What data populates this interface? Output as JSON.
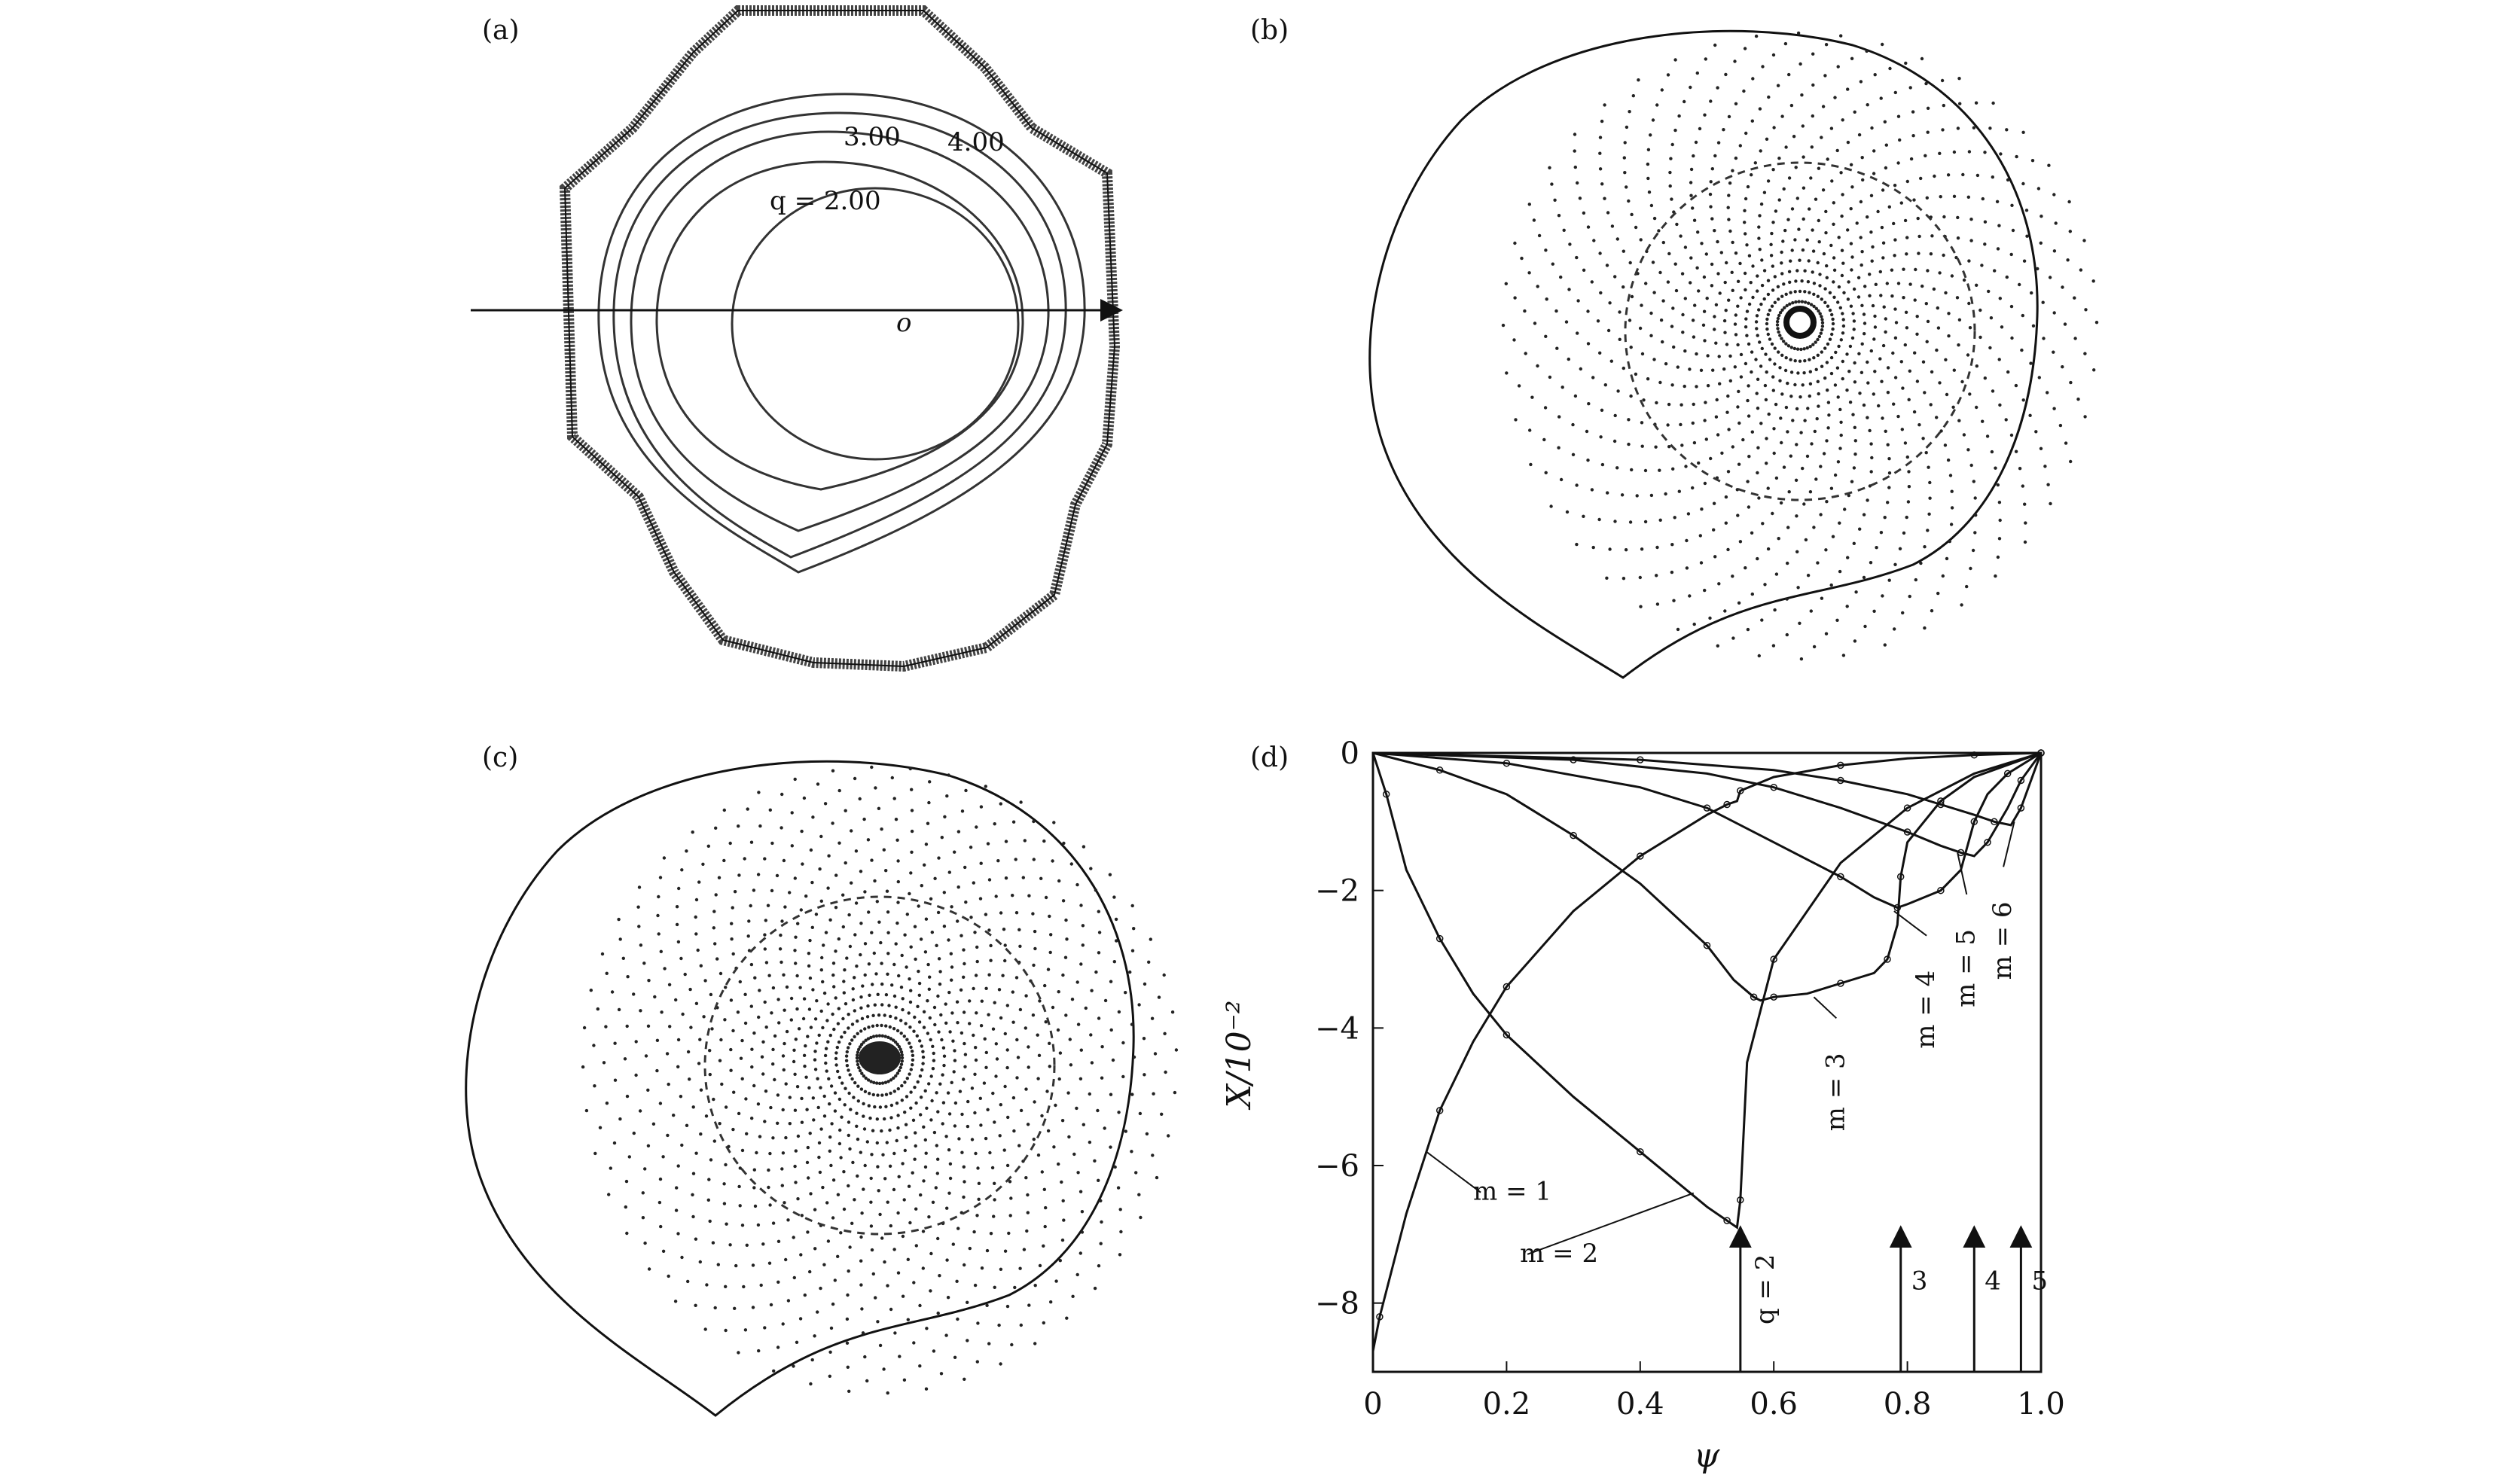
{
  "panels": {
    "a": {
      "label": "(a)",
      "contour_labels": [
        "q = 2.00",
        "3.00",
        "4.00"
      ],
      "center_label": "o"
    },
    "b": {
      "label": "(b)"
    },
    "c": {
      "label": "(c)"
    },
    "d": {
      "label": "(d)"
    }
  },
  "chart_data": {
    "type": "line",
    "panel": "(d)",
    "xlabel": "ψ",
    "ylabel": "X/10⁻²",
    "xlim": [
      0,
      1.0
    ],
    "ylim": [
      -9,
      0
    ],
    "x_ticks": [
      "0",
      "0.2",
      "0.4",
      "0.6",
      "0.8",
      "1.0"
    ],
    "y_ticks": [
      "0",
      "−2",
      "−4",
      "−6",
      "−8"
    ],
    "grid": false,
    "series": [
      {
        "name": "m = 1",
        "x": [
          0,
          0.01,
          0.05,
          0.1,
          0.15,
          0.2,
          0.3,
          0.4,
          0.5,
          0.53,
          0.545,
          0.55,
          0.6,
          0.7,
          0.8,
          0.9,
          1.0
        ],
        "values": [
          -8.7,
          -8.2,
          -6.7,
          -5.2,
          -4.2,
          -3.4,
          -2.3,
          -1.5,
          -0.9,
          -0.75,
          -0.7,
          -0.55,
          -0.35,
          -0.18,
          -0.08,
          -0.03,
          0
        ]
      },
      {
        "name": "m = 2",
        "x": [
          0,
          0.02,
          0.05,
          0.1,
          0.15,
          0.2,
          0.3,
          0.4,
          0.5,
          0.53,
          0.545,
          0.55,
          0.56,
          0.6,
          0.7,
          0.8,
          0.9,
          1.0
        ],
        "values": [
          0,
          -0.6,
          -1.7,
          -2.7,
          -3.5,
          -4.1,
          -5.0,
          -5.8,
          -6.6,
          -6.8,
          -6.9,
          -6.5,
          -4.5,
          -3.0,
          -1.6,
          -0.8,
          -0.3,
          0
        ]
      },
      {
        "name": "m = 3",
        "x": [
          0,
          0.1,
          0.2,
          0.3,
          0.4,
          0.5,
          0.54,
          0.57,
          0.58,
          0.6,
          0.65,
          0.7,
          0.75,
          0.77,
          0.785,
          0.79,
          0.8,
          0.85,
          0.9,
          1.0
        ],
        "values": [
          0,
          -0.25,
          -0.6,
          -1.2,
          -1.9,
          -2.8,
          -3.3,
          -3.55,
          -3.6,
          -3.55,
          -3.5,
          -3.35,
          -3.2,
          -3.0,
          -2.5,
          -1.8,
          -1.3,
          -0.7,
          -0.35,
          0
        ]
      },
      {
        "name": "m = 4",
        "x": [
          0,
          0.2,
          0.4,
          0.5,
          0.6,
          0.7,
          0.75,
          0.785,
          0.8,
          0.85,
          0.88,
          0.9,
          0.92,
          0.95,
          1.0
        ],
        "values": [
          0,
          -0.15,
          -0.5,
          -0.8,
          -1.3,
          -1.8,
          -2.1,
          -2.25,
          -2.2,
          -2.0,
          -1.7,
          -1.0,
          -0.6,
          -0.3,
          0
        ]
      },
      {
        "name": "m = 5",
        "x": [
          0,
          0.3,
          0.5,
          0.6,
          0.7,
          0.8,
          0.85,
          0.88,
          0.9,
          0.92,
          0.95,
          0.97,
          1.0
        ],
        "values": [
          0,
          -0.1,
          -0.3,
          -0.5,
          -0.8,
          -1.15,
          -1.35,
          -1.45,
          -1.5,
          -1.3,
          -0.8,
          -0.4,
          0
        ]
      },
      {
        "name": "m = 6",
        "x": [
          0,
          0.4,
          0.6,
          0.7,
          0.8,
          0.85,
          0.9,
          0.93,
          0.955,
          0.97,
          0.985,
          1.0
        ],
        "values": [
          0,
          -0.1,
          -0.25,
          -0.4,
          -0.6,
          -0.75,
          -0.9,
          -1.0,
          -1.05,
          -0.8,
          -0.4,
          0
        ]
      }
    ],
    "resonance_markers": [
      {
        "label": "q = 2",
        "x": 0.55
      },
      {
        "label": "3",
        "x": 0.79
      },
      {
        "label": "4",
        "x": 0.9
      },
      {
        "label": "5",
        "x": 0.97
      }
    ]
  }
}
